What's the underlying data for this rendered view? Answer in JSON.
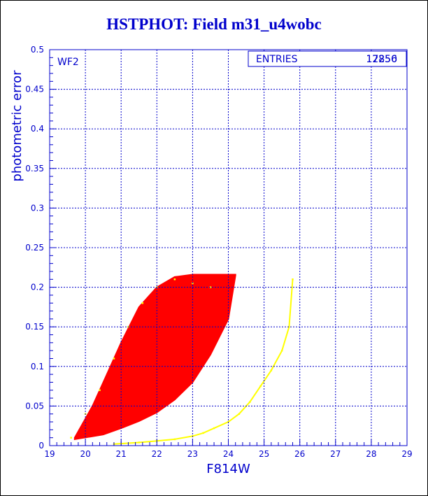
{
  "title": "HSTPHOT: Field m31_u4wobc",
  "chart_data": {
    "type": "scatter",
    "title": "HSTPHOT: Field m31_u4wobc",
    "xlabel": "F814W",
    "ylabel": "photometric error",
    "xlim": [
      19,
      29
    ],
    "ylim": [
      0,
      0.5
    ],
    "x_ticks": [
      "19",
      "20",
      "21",
      "22",
      "23",
      "24",
      "25",
      "26",
      "27",
      "28",
      "29"
    ],
    "y_ticks": [
      "0",
      "0.05",
      "0.1",
      "0.15",
      "0.2",
      "0.25",
      "0.3",
      "0.35",
      "0.4",
      "0.45",
      "0.5"
    ],
    "grid": true,
    "panel_label": "WF2",
    "stats": {
      "label": "ENTRIES",
      "values": [
        "17856",
        "12250"
      ]
    },
    "series": [
      {
        "color": "#ff0000",
        "envelope": {
          "lower_edge": [
            [
              19.7,
              0.008
            ],
            [
              20.5,
              0.014
            ],
            [
              21.0,
              0.022
            ],
            [
              21.5,
              0.031
            ],
            [
              22.0,
              0.042
            ],
            [
              22.5,
              0.058
            ],
            [
              23.0,
              0.08
            ],
            [
              23.5,
              0.115
            ],
            [
              24.0,
              0.16
            ],
            [
              24.2,
              0.215
            ]
          ],
          "upper_edge": [
            [
              19.7,
              0.01
            ],
            [
              20.2,
              0.05
            ],
            [
              20.6,
              0.09
            ],
            [
              21.0,
              0.13
            ],
            [
              21.5,
              0.175
            ],
            [
              22.0,
              0.2
            ],
            [
              22.5,
              0.213
            ],
            [
              23.0,
              0.216
            ],
            [
              24.2,
              0.216
            ]
          ]
        },
        "points": [
          [
            19.8,
            0.01
          ],
          [
            20.0,
            0.02
          ],
          [
            20.3,
            0.025
          ],
          [
            20.5,
            0.04
          ],
          [
            20.6,
            0.06
          ],
          [
            20.8,
            0.08
          ],
          [
            21.0,
            0.1
          ],
          [
            21.2,
            0.12
          ],
          [
            21.5,
            0.14
          ],
          [
            21.8,
            0.17
          ],
          [
            22.0,
            0.19
          ],
          [
            22.3,
            0.2
          ],
          [
            22.6,
            0.21
          ],
          [
            23.0,
            0.215
          ],
          [
            23.5,
            0.21
          ],
          [
            24.0,
            0.215
          ]
        ]
      },
      {
        "color": "#ffff00",
        "points": [
          [
            20.8,
            0.002
          ],
          [
            21.5,
            0.004
          ],
          [
            22.0,
            0.006
          ],
          [
            22.5,
            0.008
          ],
          [
            23.0,
            0.012
          ],
          [
            23.3,
            0.016
          ],
          [
            23.6,
            0.022
          ],
          [
            24.0,
            0.03
          ],
          [
            24.3,
            0.04
          ],
          [
            24.6,
            0.055
          ],
          [
            24.9,
            0.075
          ],
          [
            25.2,
            0.095
          ],
          [
            25.5,
            0.12
          ],
          [
            25.7,
            0.15
          ],
          [
            25.8,
            0.21
          ],
          [
            20.0,
            0.04
          ],
          [
            20.4,
            0.07
          ],
          [
            20.8,
            0.11
          ],
          [
            21.2,
            0.15
          ],
          [
            21.6,
            0.18
          ],
          [
            22.0,
            0.2
          ],
          [
            22.5,
            0.21
          ],
          [
            23.0,
            0.205
          ],
          [
            23.5,
            0.2
          ],
          [
            19.6,
            0.01
          ]
        ]
      }
    ]
  }
}
